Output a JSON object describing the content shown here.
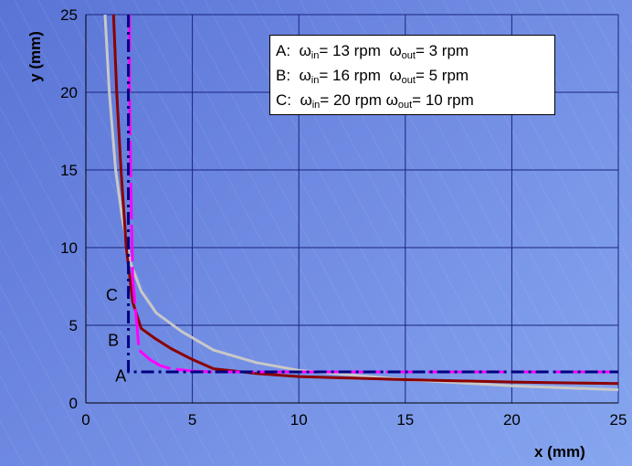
{
  "chart_data": {
    "type": "line",
    "xlabel": "x (mm)",
    "ylabel": "y (mm)",
    "xlim": [
      0,
      25
    ],
    "ylim": [
      0,
      25
    ],
    "xticks": [
      0,
      5,
      10,
      15,
      20,
      25
    ],
    "yticks": [
      0,
      5,
      10,
      15,
      20,
      25
    ],
    "grid": true,
    "legend_position": "top-right",
    "legend": [
      {
        "letter": "A:",
        "w_in": "13 rpm",
        "w_out": "3 rpm"
      },
      {
        "letter": "B:",
        "w_in": "16 rpm",
        "w_out": "5 rpm"
      },
      {
        "letter": "C:",
        "w_in": "20 rpm",
        "w_out": "10 rpm"
      }
    ],
    "series": [
      {
        "label": "A",
        "color": "#000080",
        "dash": "dash-dot",
        "x": [
          2.0,
          2.0,
          2.0,
          2.0,
          2.0,
          2.0,
          2.0,
          2.0,
          3,
          5,
          10,
          15,
          20,
          25
        ],
        "y": [
          25,
          20,
          15,
          10,
          5,
          3,
          2.4,
          2.0,
          2.0,
          2.0,
          2.0,
          2.0,
          2.0,
          2.0
        ]
      },
      {
        "label": "B",
        "color": "#ff00ff",
        "dash": "solid-dash",
        "x": [
          2.05,
          2.05,
          2.1,
          2.2,
          2.5,
          3.0,
          3.5,
          4.0,
          5,
          6,
          10,
          15,
          20,
          25
        ],
        "y": [
          25,
          20,
          15,
          8.0,
          3.4,
          2.8,
          2.4,
          2.2,
          2.05,
          2.0,
          2.0,
          2.0,
          2.0,
          2.0
        ]
      },
      {
        "label": "C",
        "color": "#8b0000",
        "dash": "solid",
        "x": [
          1.3,
          1.45,
          1.65,
          1.9,
          2.2,
          2.6,
          3.2,
          4.0,
          5.0,
          6.0,
          8,
          10,
          15,
          20,
          25
        ],
        "y": [
          25,
          20,
          15,
          10,
          6.5,
          4.8,
          4.2,
          3.5,
          2.8,
          2.2,
          1.9,
          1.7,
          1.5,
          1.35,
          1.25
        ]
      },
      {
        "label": "",
        "color": "#c8c8c8",
        "dash": "solid",
        "x": [
          0.9,
          1.1,
          1.4,
          1.7,
          2.1,
          2.6,
          3.3,
          4.5,
          6,
          8,
          10,
          15,
          20,
          25
        ],
        "y": [
          25,
          20,
          15,
          12,
          9,
          7.2,
          5.8,
          4.6,
          3.4,
          2.6,
          2.1,
          1.5,
          1.1,
          0.85
        ]
      }
    ],
    "curve_labels": [
      {
        "text": "A",
        "x": 1.9,
        "y": 1.8
      },
      {
        "text": "B",
        "x": 1.55,
        "y": 4.1
      },
      {
        "text": "C",
        "x": 1.5,
        "y": 7.0
      }
    ]
  }
}
